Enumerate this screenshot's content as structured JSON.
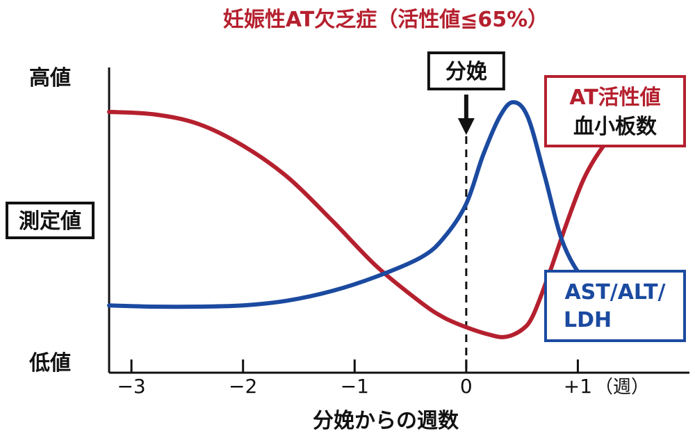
{
  "chart_data": {
    "type": "line",
    "title": "妊娠性AT欠乏症（活性値≦65%）",
    "xlabel": "分娩からの週数",
    "ylabel": "測定値",
    "x_unit": "（週）",
    "y_high_label": "高値",
    "y_low_label": "低値",
    "xlim": [
      -3.2,
      2.0
    ],
    "ylim": [
      0,
      1
    ],
    "x_ticks": [
      {
        "value": -3,
        "label": "−3"
      },
      {
        "value": -2,
        "label": "−2"
      },
      {
        "value": -1,
        "label": "−1"
      },
      {
        "value": 0,
        "label": "0"
      },
      {
        "value": 1,
        "label": "+1"
      }
    ],
    "marker": {
      "x": 0,
      "label": "分娩",
      "style": "dashed"
    },
    "series": [
      {
        "name_lines": [
          "AT活性値",
          "血小板数"
        ],
        "color": "#b5202e",
        "x": [
          -3.2,
          -2.8,
          -2.4,
          -2.0,
          -1.6,
          -1.2,
          -0.8,
          -0.4,
          -0.2,
          0.0,
          0.2,
          0.35,
          0.5,
          0.6,
          0.75,
          0.9,
          1.05,
          1.2,
          1.35,
          1.45
        ],
        "y": [
          0.94,
          0.93,
          0.89,
          0.8,
          0.67,
          0.49,
          0.3,
          0.15,
          0.09,
          0.05,
          0.02,
          0.01,
          0.04,
          0.1,
          0.28,
          0.48,
          0.66,
          0.78,
          0.86,
          0.88
        ]
      },
      {
        "name_lines": [
          "AST/ALT/",
          "LDH"
        ],
        "color": "#1b4aa0",
        "x": [
          -3.2,
          -2.8,
          -2.4,
          -2.0,
          -1.6,
          -1.2,
          -0.8,
          -0.4,
          -0.2,
          0.0,
          0.15,
          0.3,
          0.42,
          0.55,
          0.7,
          0.85,
          1.0,
          1.15,
          1.3,
          1.45
        ],
        "y": [
          0.14,
          0.135,
          0.135,
          0.14,
          0.16,
          0.2,
          0.26,
          0.34,
          0.42,
          0.56,
          0.76,
          0.92,
          0.98,
          0.92,
          0.68,
          0.42,
          0.28,
          0.22,
          0.2,
          0.19
        ]
      }
    ]
  }
}
